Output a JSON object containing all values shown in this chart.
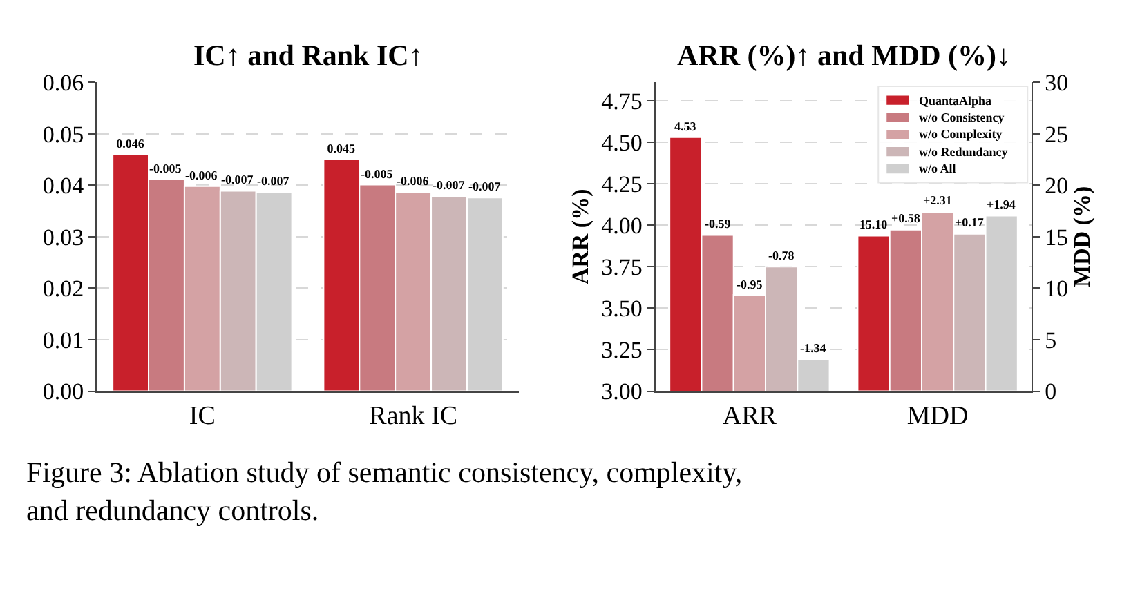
{
  "chart_data": [
    {
      "type": "bar",
      "title": "IC↑ and Rank IC↑",
      "categories": [
        "IC",
        "Rank IC"
      ],
      "series": [
        {
          "color": "#c8202b",
          "values": [
            0.046,
            0.045
          ],
          "value_labels": [
            "0.046",
            "0.045"
          ]
        },
        {
          "color": "#c87a80",
          "values": [
            0.0412,
            0.0401
          ]
        },
        {
          "color": "#d4a2a4",
          "values": [
            0.0398,
            0.0386
          ]
        },
        {
          "color": "#ccb6b7",
          "values": [
            0.0389,
            0.0378
          ]
        },
        {
          "color": "#cfcfcf",
          "values": [
            0.0387,
            0.0376
          ]
        }
      ],
      "ylim": [
        0,
        0.06
      ],
      "yticks": [
        {
          "value": 0,
          "label": "0.00"
        },
        0.01,
        0.02,
        0.03,
        0.04,
        0.05,
        0.06
      ],
      "grid": "y",
      "annotations": [
        "-0.005",
        "-0.006",
        "-0.007",
        "-0.007",
        "-0.005",
        "-0.006",
        "-0.007",
        "-0.007"
      ]
    },
    {
      "type": "bar",
      "title": "ARR (%)↑ and MDD (%)↓",
      "categories": [
        "ARR",
        "MDD"
      ],
      "ylabel": "ARR (%)",
      "y2label": "MDD (%)",
      "series": [
        {
          "name": "QuantaAlpha",
          "color": "#c8202b",
          "values": [
            4.53,
            null
          ],
          "value_labels": [
            "4.53",
            null
          ]
        },
        {
          "name": "w/o Consistency",
          "color": "#c87a80",
          "values": [
            3.94,
            null
          ]
        },
        {
          "name": "w/o Complexity",
          "color": "#d4a2a4",
          "values": [
            3.58,
            null
          ]
        },
        {
          "name": "w/o Redundancy",
          "color": "#ccb6b7",
          "values": [
            3.75,
            null
          ]
        },
        {
          "name": "w/o All",
          "color": "#cfcfcf",
          "values": [
            3.19,
            null
          ]
        },
        {
          "color": "#c8202b",
          "axis": "y2",
          "values": [
            null,
            15.1
          ],
          "value_labels": [
            null,
            "15.10"
          ]
        },
        {
          "color": "#c87a80",
          "axis": "y2",
          "values": [
            null,
            15.68
          ]
        },
        {
          "color": "#d4a2a4",
          "axis": "y2",
          "values": [
            null,
            17.41
          ]
        },
        {
          "color": "#ccb6b7",
          "axis": "y2",
          "values": [
            null,
            15.27
          ]
        },
        {
          "color": "#cfcfcf",
          "axis": "y2",
          "values": [
            null,
            17.04
          ]
        }
      ],
      "ylim": [
        3.0,
        4.86
      ],
      "yticks": [
        {
          "value": 3,
          "label": "3.00"
        },
        3.25,
        {
          "value": 3.5,
          "label": "3.50"
        },
        3.75,
        {
          "value": 4,
          "label": "4.00"
        },
        4.25,
        {
          "value": 4.5,
          "label": "4.50"
        },
        4.75
      ],
      "y2lim": [
        0,
        30
      ],
      "y2ticks": [
        0,
        5,
        10,
        15,
        20,
        25,
        30
      ],
      "grid": "y",
      "legend": "top right",
      "annotations": [
        "-0.59",
        "-0.95",
        "-0.78",
        "-1.34",
        "+0.58",
        "+2.31",
        "+0.17",
        "+1.94",
        "Figure 3: Ablation study of semantic consistency, complexity, and redundancy controls."
      ]
    }
  ]
}
